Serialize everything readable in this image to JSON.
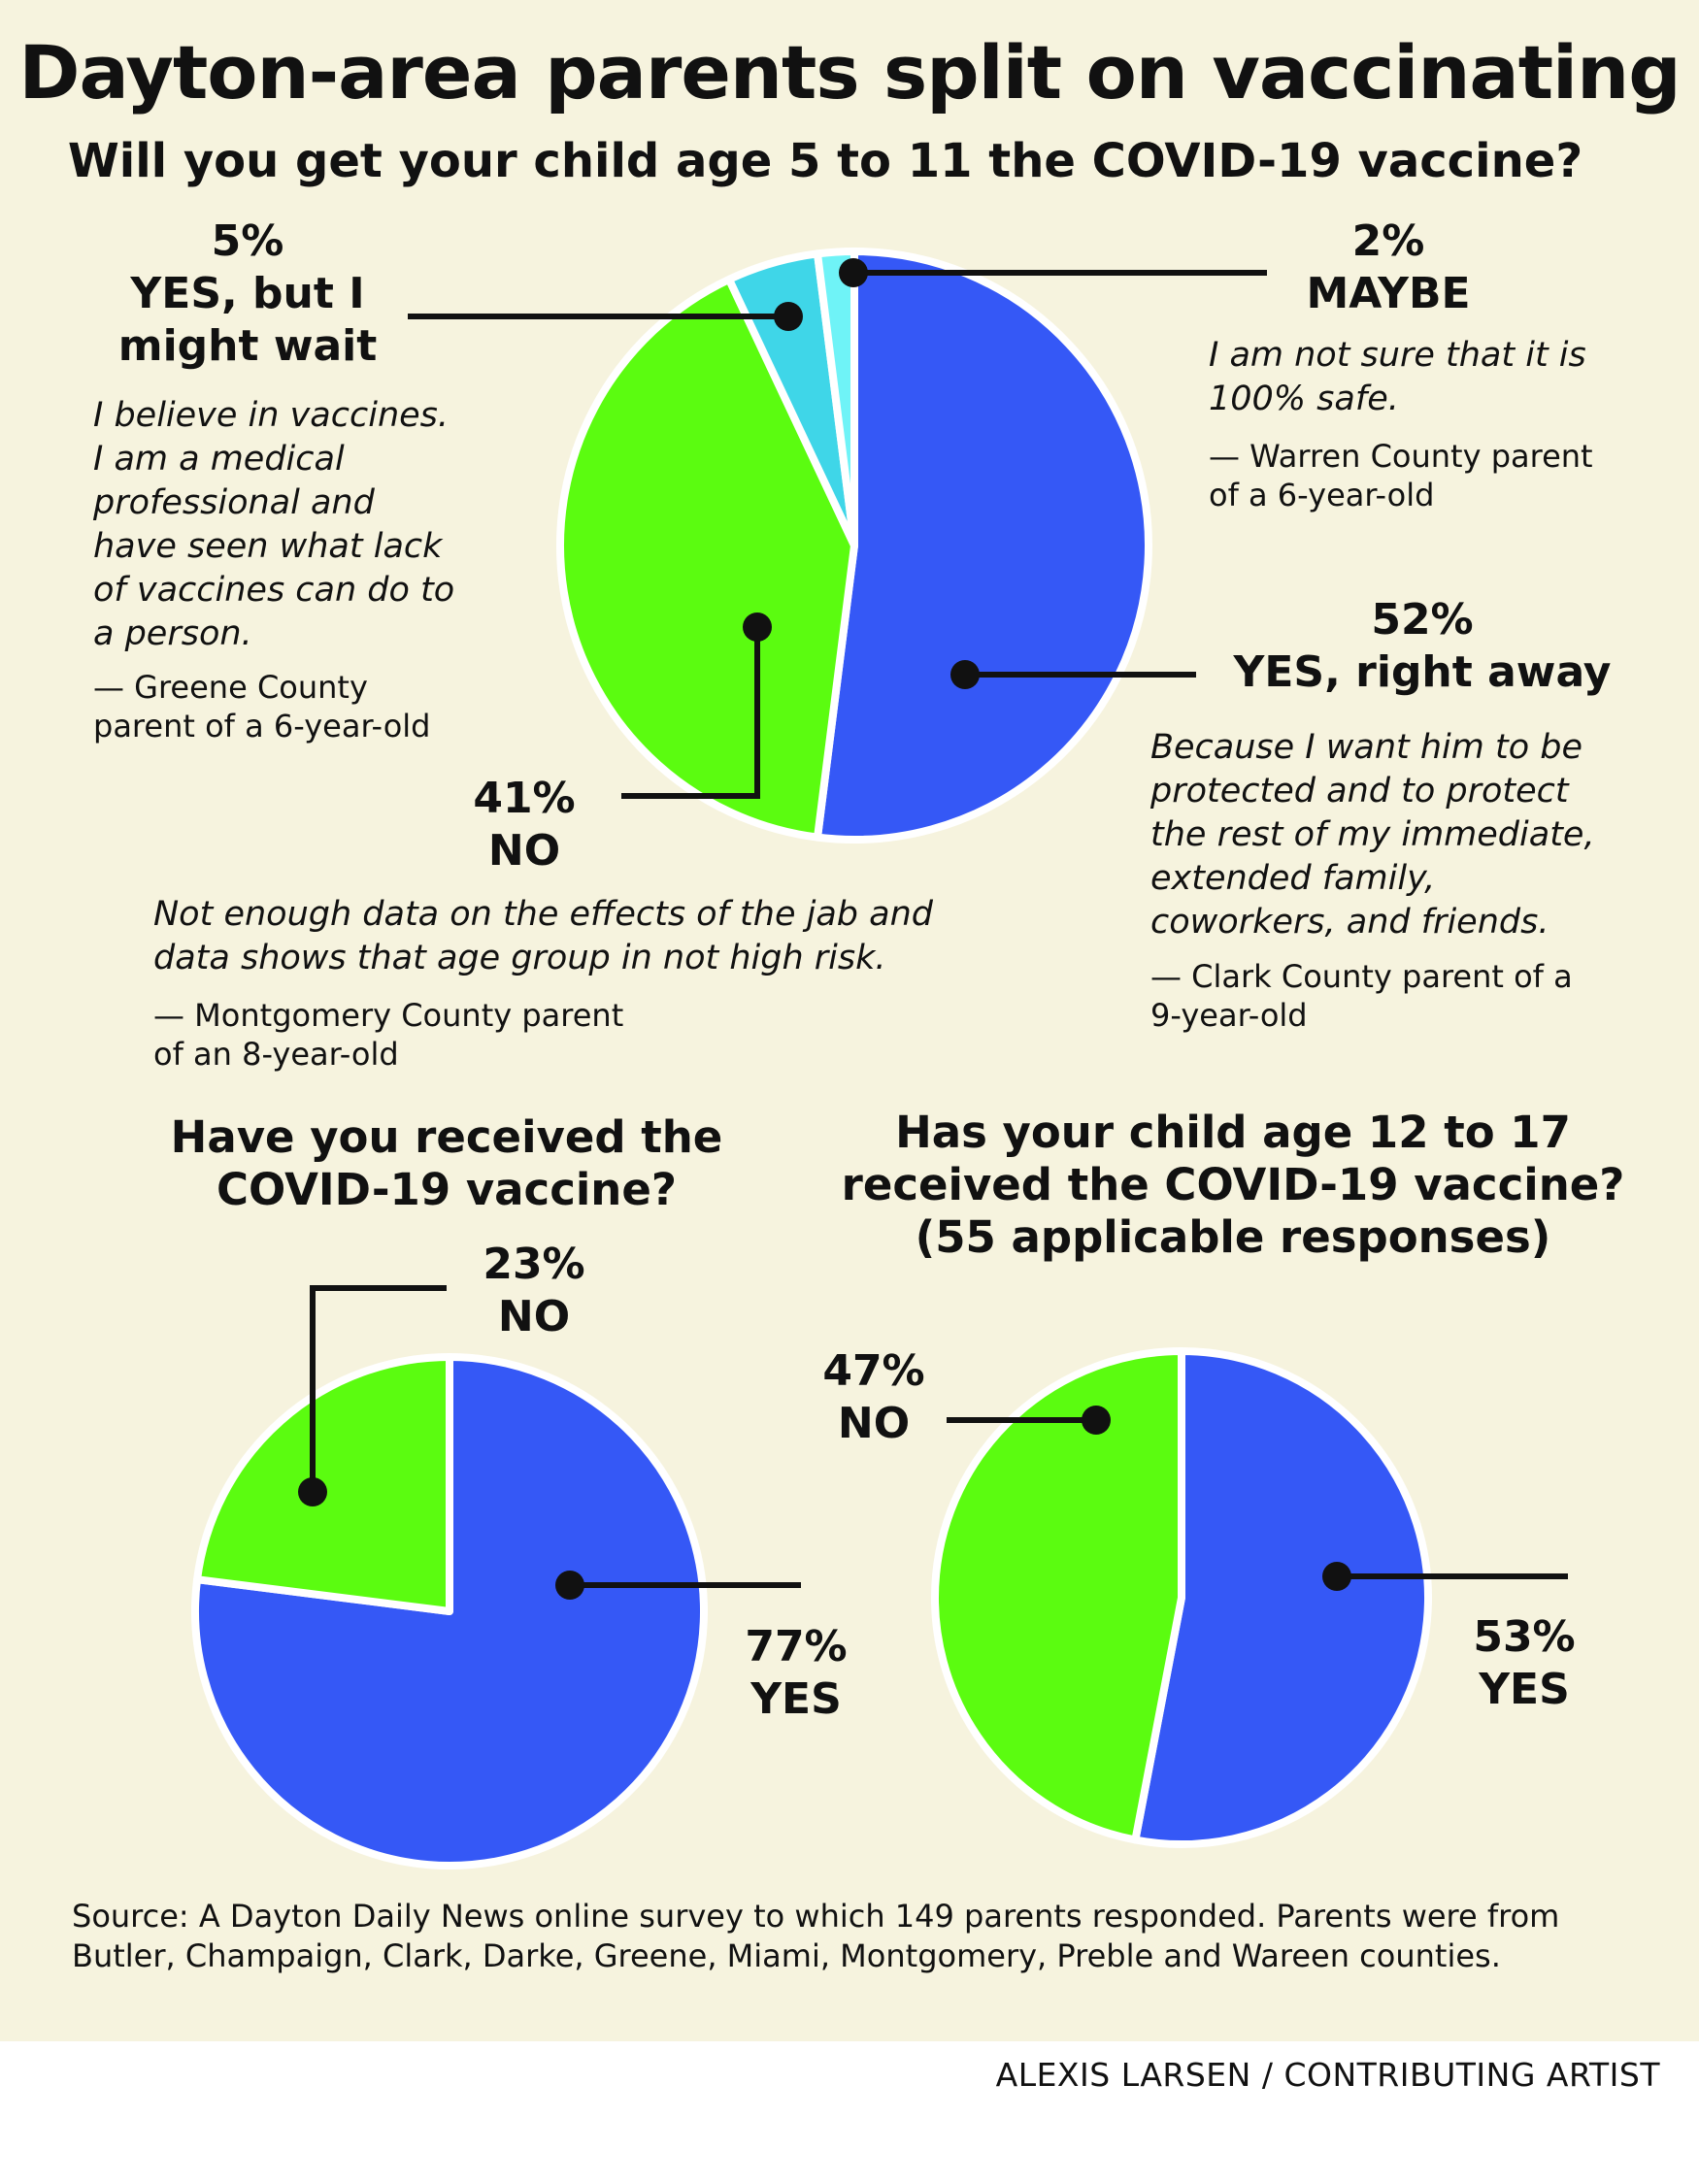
{
  "title": "Dayton-area parents split on vaccinating",
  "subtitle": "Will you get your child age 5 to 11 the COVID-19 vaccine?",
  "colors": {
    "blue": "#3558f6",
    "green": "#5bfc10",
    "cyan": "#3fd6e8",
    "light_cyan": "#6ff3f7",
    "background": "#f6f3de"
  },
  "chart_data": [
    {
      "type": "pie",
      "title": "Will you get your child age 5 to 11 the COVID-19 vaccine?",
      "series": [
        {
          "name": "YES, right away",
          "value": 52,
          "color": "#3558f6"
        },
        {
          "name": "NO",
          "value": 41,
          "color": "#5bfc10"
        },
        {
          "name": "YES, but I might wait",
          "value": 5,
          "color": "#3fd6e8"
        },
        {
          "name": "MAYBE",
          "value": 2,
          "color": "#6ff3f7"
        }
      ]
    },
    {
      "type": "pie",
      "title": "Have you received the COVID-19 vaccine?",
      "series": [
        {
          "name": "YES",
          "value": 77,
          "color": "#3558f6"
        },
        {
          "name": "NO",
          "value": 23,
          "color": "#5bfc10"
        }
      ]
    },
    {
      "type": "pie",
      "title": "Has your child age 12 to 17 received the COVID-19 vaccine?",
      "subtitle": "(55 applicable responses)",
      "series": [
        {
          "name": "YES",
          "value": 53,
          "color": "#3558f6"
        },
        {
          "name": "NO",
          "value": 47,
          "color": "#5bfc10"
        }
      ]
    }
  ],
  "chart1": {
    "yes_wait": {
      "pct": "5%",
      "label_line1": "YES, but I",
      "label_line2": "might wait",
      "quote": [
        "I believe in vaccines.",
        "I am a medical",
        "professional and",
        "have seen what lack",
        "of vaccines can do to",
        "a person."
      ],
      "attribution": [
        "— Greene County",
        "parent of a 6-year-old"
      ]
    },
    "maybe": {
      "pct": "2%",
      "label": "MAYBE",
      "quote": [
        "I am not sure that it is",
        "100% safe."
      ],
      "attribution": [
        "— Warren County parent",
        "of a 6-year-old"
      ]
    },
    "yes_right_away": {
      "pct": "52%",
      "label": "YES, right away",
      "quote": [
        "Because I want him to be",
        "protected and to protect",
        "the rest of my immediate,",
        "extended family,",
        "coworkers, and friends."
      ],
      "attribution": [
        "— Clark County parent of a",
        "9-year-old"
      ]
    },
    "no": {
      "pct": "41%",
      "label": "NO",
      "quote": [
        "Not enough data on the effects of the jab and",
        "data shows that age group in not high risk."
      ],
      "attribution": [
        "— Montgomery County parent",
        "of an 8-year-old"
      ]
    }
  },
  "chart2": {
    "question_line1": "Have you received the",
    "question_line2": "COVID-19 vaccine?",
    "no": {
      "pct": "23%",
      "label": "NO"
    },
    "yes": {
      "pct": "77%",
      "label": "YES"
    }
  },
  "chart3": {
    "question_line1": "Has your child age 12 to 17",
    "question_line2": "received the COVID-19 vaccine?",
    "question_line3": "(55 applicable responses)",
    "no": {
      "pct": "47%",
      "label": "NO"
    },
    "yes": {
      "pct": "53%",
      "label": "YES"
    }
  },
  "source": [
    "Source: A Dayton Daily News online survey to which 149 parents responded. Parents were from",
    "Butler, Champaign, Clark, Darke, Greene, Miami, Montgomery, Preble and Wareen counties."
  ],
  "credit": "ALEXIS LARSEN / CONTRIBUTING ARTIST"
}
